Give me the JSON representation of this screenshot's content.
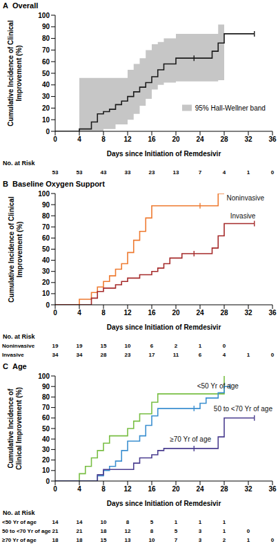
{
  "chart_data": [
    {
      "panel": "A",
      "title": "Overall",
      "type": "line",
      "line_style": "step",
      "marker": "tick",
      "grid": false,
      "x_label": "Days since Initiation of Remdesivir",
      "y_label": "Cumulative Incidence of Clinical Improvement (%)",
      "xlim": [
        0,
        36
      ],
      "xticks": [
        0,
        4,
        8,
        12,
        16,
        20,
        24,
        28,
        32,
        36
      ],
      "ylim": [
        0,
        100
      ],
      "yticks": [
        0,
        10,
        20,
        30,
        40,
        50,
        60,
        70,
        80,
        90,
        100
      ],
      "series": [
        {
          "name": "95% Hall-Wellner band",
          "type": "band",
          "color": "#c6c6c6",
          "x": [
            0,
            4,
            8,
            10,
            12,
            13,
            14,
            15,
            16,
            17,
            18,
            20,
            27,
            28
          ],
          "lower": [
            0,
            0,
            2,
            6,
            10,
            15,
            22,
            28,
            36,
            40,
            42,
            43,
            44,
            44
          ],
          "upper": [
            0,
            46,
            46,
            46,
            53,
            58,
            63,
            70,
            75,
            77,
            80,
            84,
            92,
            99
          ]
        },
        {
          "color": "#1a1a1a",
          "x": [
            0,
            4,
            6,
            7,
            8,
            9,
            10,
            11,
            12,
            13,
            14,
            15,
            16,
            17,
            18,
            20,
            26,
            27,
            28,
            33
          ],
          "values": [
            0,
            2,
            8,
            15,
            17,
            19,
            23,
            26,
            30,
            34,
            38,
            42,
            47,
            53,
            58,
            63,
            69,
            76,
            84,
            84
          ],
          "censored": [
            23,
            33
          ]
        }
      ],
      "risk_table": {
        "title": "No. at Risk",
        "x": [
          0,
          4,
          8,
          12,
          16,
          20,
          24,
          28,
          32,
          36
        ],
        "rows": [
          {
            "values": [
              53,
              53,
              43,
              33,
              23,
              13,
              7,
              4,
              1,
              0
            ]
          }
        ]
      }
    },
    {
      "panel": "B",
      "title": "Baseline Oxygen Support",
      "type": "line",
      "line_style": "step",
      "marker": "tick",
      "grid": false,
      "x_label": "Days since Initiation of Remdesivir",
      "y_label": "Cumulative Incidence of Clinical Improvement (%)",
      "xlim": [
        0,
        36
      ],
      "xticks": [
        0,
        4,
        8,
        12,
        16,
        20,
        24,
        28,
        32,
        36
      ],
      "ylim": [
        0,
        100
      ],
      "yticks": [
        0,
        10,
        20,
        30,
        40,
        50,
        60,
        70,
        80,
        90,
        100
      ],
      "series": [
        {
          "name": "Noninvasive",
          "color": "#ee7a30",
          "x": [
            0,
            4,
            6,
            7,
            8,
            9,
            10,
            11,
            12,
            13,
            14,
            15,
            16,
            27,
            28
          ],
          "values": [
            0,
            5,
            11,
            16,
            21,
            26,
            32,
            37,
            47,
            58,
            66,
            78,
            89,
            100,
            100
          ],
          "censored": [
            24
          ]
        },
        {
          "name": "Invasive",
          "color": "#a52a2a",
          "x": [
            0,
            6,
            7,
            8,
            10,
            11,
            12,
            14,
            16,
            17,
            18,
            19,
            21,
            26,
            27,
            28,
            33
          ],
          "values": [
            0,
            6,
            12,
            15,
            18,
            21,
            24,
            27,
            30,
            33,
            37,
            42,
            46,
            51,
            62,
            73,
            73
          ],
          "censored": [
            23,
            33
          ]
        }
      ],
      "risk_table": {
        "title": "No. at Risk",
        "x": [
          0,
          4,
          8,
          12,
          16,
          20,
          24,
          28,
          32,
          36
        ],
        "rows": [
          {
            "name": "Noninvasive",
            "values": [
              19,
              19,
              15,
              10,
              6,
              2,
              1,
              0,
              null,
              null
            ]
          },
          {
            "name": "Invasive",
            "values": [
              34,
              34,
              28,
              23,
              17,
              11,
              6,
              4,
              1,
              0
            ]
          }
        ]
      }
    },
    {
      "panel": "C",
      "title": "Age",
      "type": "line",
      "line_style": "step",
      "marker": "tick",
      "grid": false,
      "x_label": "Days since Initiation of Remdesivir",
      "y_label": "Cumulative Incidence of Clinical Improvement (%)",
      "xlim": [
        0,
        36
      ],
      "xticks": [
        0,
        4,
        8,
        12,
        16,
        20,
        24,
        28,
        32,
        36
      ],
      "ylim": [
        0,
        100
      ],
      "yticks": [
        0,
        10,
        20,
        30,
        40,
        50,
        60,
        70,
        80,
        90,
        100
      ],
      "series": [
        {
          "name": "<50 Yr of age",
          "color": "#78be43",
          "x": [
            0,
            4,
            5,
            6,
            7,
            8,
            9,
            12,
            13,
            14,
            16,
            17,
            28
          ],
          "values": [
            0,
            7,
            14,
            22,
            29,
            36,
            43,
            50,
            57,
            64,
            75,
            83,
            100
          ],
          "censored": []
        },
        {
          "name": "50 to <70 Yr of age",
          "color": "#3b8fd0",
          "x": [
            0,
            7,
            8,
            9,
            10,
            11,
            12,
            14,
            15,
            16,
            17,
            24,
            25,
            27,
            28,
            29
          ],
          "values": [
            0,
            5,
            10,
            14,
            19,
            29,
            38,
            43,
            53,
            62,
            69,
            74,
            79,
            84,
            90,
            90
          ],
          "censored": [
            23,
            29
          ]
        },
        {
          "name": "≥70 Yr of age",
          "color": "#4a3d8f",
          "x": [
            0,
            7,
            8,
            13,
            14,
            16,
            17,
            18,
            27,
            28,
            33
          ],
          "values": [
            0,
            6,
            11,
            17,
            22,
            25,
            29,
            31,
            42,
            60,
            60
          ],
          "censored": [
            23,
            33
          ]
        }
      ],
      "risk_table": {
        "title": "No. at Risk",
        "x": [
          0,
          4,
          8,
          12,
          16,
          20,
          24,
          28,
          32,
          36
        ],
        "rows": [
          {
            "name": "<50 Yr of age",
            "values": [
              14,
              14,
              10,
              8,
              5,
              1,
              1,
              1,
              null,
              null
            ]
          },
          {
            "name": "50 to <70 Yr of age",
            "values": [
              21,
              21,
              18,
              12,
              8,
              5,
              3,
              1,
              0,
              null
            ]
          },
          {
            "name": "≥70 Yr of age",
            "values": [
              18,
              18,
              15,
              13,
              10,
              7,
              3,
              2,
              1,
              0
            ]
          }
        ]
      }
    }
  ]
}
